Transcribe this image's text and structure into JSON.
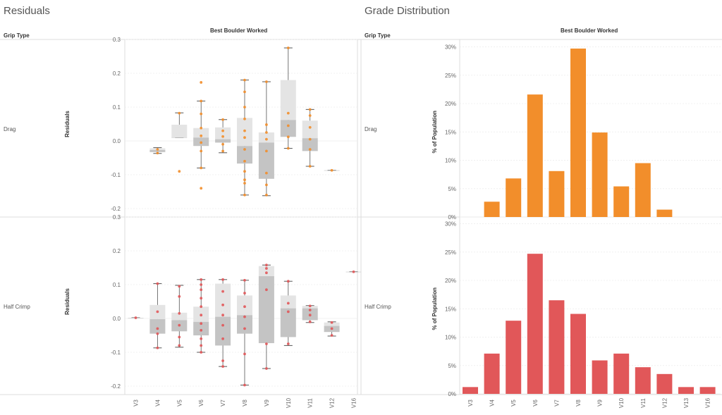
{
  "sheets": {
    "left_title": "Residuals",
    "right_title": "Grade Distribution",
    "row_header": "Grip Type",
    "col_header": "Best Boulder Worked"
  },
  "colors": {
    "drag": "#f28e2b",
    "half_crimp": "#e15759",
    "box_upper": "#e4e4e4",
    "box_lower": "#c4c4c4",
    "whisker": "#555555"
  },
  "chart_data": [
    {
      "type": "box",
      "title": "Residuals",
      "panel": "Drag",
      "ylabel": "Residuals",
      "ylim": [
        -0.2,
        0.3
      ],
      "yticks": [
        "0.3",
        "0.2",
        "0.1",
        "0.0",
        "-0.1",
        "-0.2"
      ],
      "categories": [
        "V3",
        "V4",
        "V5",
        "V6",
        "V7",
        "V8",
        "V9",
        "V10",
        "V11",
        "V12",
        "V16"
      ],
      "boxes": [
        null,
        {
          "cat": "V4",
          "lo": -0.037,
          "q1": -0.033,
          "med": -0.027,
          "q3": -0.022,
          "hi": -0.02,
          "points": [
            -0.036,
            -0.025
          ]
        },
        {
          "cat": "V5",
          "lo": 0.01,
          "q1": 0.01,
          "med": 0.01,
          "q3": 0.048,
          "hi": 0.083,
          "points": [
            -0.09,
            0.082
          ]
        },
        {
          "cat": "V6",
          "lo": -0.08,
          "q1": -0.015,
          "med": 0.01,
          "q3": 0.038,
          "hi": 0.118,
          "points": [
            0.173,
            0.118,
            0.08,
            0.038,
            0.015,
            -0.005,
            -0.03,
            -0.08,
            -0.14
          ]
        },
        {
          "cat": "V7",
          "lo": -0.035,
          "q1": -0.005,
          "med": 0.005,
          "q3": 0.04,
          "hi": 0.063,
          "points": [
            0.063,
            0.03,
            0.013,
            -0.01,
            -0.03
          ]
        },
        {
          "cat": "V8",
          "lo": -0.16,
          "q1": -0.067,
          "med": -0.015,
          "q3": 0.068,
          "hi": 0.18,
          "points": [
            0.18,
            0.145,
            0.1,
            0.065,
            0.03,
            0.01,
            -0.025,
            -0.06,
            -0.09,
            -0.115,
            -0.125,
            -0.16
          ]
        },
        {
          "cat": "V9",
          "lo": -0.162,
          "q1": -0.112,
          "med": -0.005,
          "q3": 0.025,
          "hi": 0.175,
          "points": [
            0.175,
            0.048,
            0.025,
            0.005,
            -0.03,
            -0.095,
            -0.13,
            -0.16
          ]
        },
        {
          "cat": "V10",
          "lo": -0.022,
          "q1": 0.012,
          "med": 0.062,
          "q3": 0.18,
          "hi": 0.275,
          "points": [
            0.275,
            0.082,
            0.045,
            0.012,
            -0.022
          ]
        },
        {
          "cat": "V11",
          "lo": -0.075,
          "q1": -0.03,
          "med": 0.008,
          "q3": 0.06,
          "hi": 0.093,
          "points": [
            0.093,
            0.075,
            0.04,
            0.005,
            -0.025,
            -0.075
          ]
        },
        {
          "cat": "V12",
          "lo": -0.087,
          "q1": -0.087,
          "med": -0.087,
          "q3": -0.087,
          "hi": -0.087,
          "points": [
            -0.087
          ]
        },
        null
      ]
    },
    {
      "type": "box",
      "title": "Residuals",
      "panel": "Half Crimp",
      "ylabel": "Residuals",
      "ylim": [
        -0.2,
        0.3
      ],
      "yticks": [
        "0.3",
        "0.2",
        "0.1",
        "0.0",
        "-0.1",
        "-0.2"
      ],
      "categories": [
        "V3",
        "V4",
        "V5",
        "V6",
        "V7",
        "V8",
        "V9",
        "V10",
        "V11",
        "V12",
        "V16"
      ],
      "boxes": [
        {
          "cat": "V3",
          "lo": 0.002,
          "q1": 0.002,
          "med": 0.002,
          "q3": 0.002,
          "hi": 0.002,
          "points": [
            0.002
          ]
        },
        {
          "cat": "V4",
          "lo": -0.087,
          "q1": -0.045,
          "med": -0.002,
          "q3": 0.04,
          "hi": 0.103,
          "points": [
            0.103,
            0.02,
            -0.03,
            -0.045,
            -0.087
          ]
        },
        {
          "cat": "V5",
          "lo": -0.085,
          "q1": -0.038,
          "med": -0.005,
          "q3": 0.017,
          "hi": 0.098,
          "points": [
            0.095,
            0.065,
            0.015,
            -0.02,
            -0.055,
            -0.08
          ]
        },
        {
          "cat": "V6",
          "lo": -0.1,
          "q1": -0.05,
          "med": -0.01,
          "q3": 0.035,
          "hi": 0.115,
          "points": [
            0.115,
            0.1,
            0.085,
            0.06,
            0.035,
            0.01,
            -0.015,
            -0.035,
            -0.06,
            -0.08,
            -0.1
          ]
        },
        {
          "cat": "V7",
          "lo": -0.142,
          "q1": -0.08,
          "med": 0.005,
          "q3": 0.103,
          "hi": 0.115,
          "points": [
            0.115,
            0.08,
            0.04,
            0.01,
            -0.02,
            -0.06,
            -0.125,
            -0.142
          ]
        },
        {
          "cat": "V8",
          "lo": -0.197,
          "q1": -0.045,
          "med": 0.01,
          "q3": 0.068,
          "hi": 0.113,
          "points": [
            0.113,
            0.075,
            0.035,
            0.005,
            -0.03,
            -0.105,
            -0.197
          ]
        },
        {
          "cat": "V9",
          "lo": -0.148,
          "q1": -0.073,
          "med": 0.125,
          "q3": 0.155,
          "hi": 0.158,
          "points": [
            0.158,
            0.148,
            0.135,
            0.085,
            -0.075,
            -0.148
          ]
        },
        {
          "cat": "V10",
          "lo": -0.08,
          "q1": -0.055,
          "med": 0.03,
          "q3": 0.068,
          "hi": 0.11,
          "points": [
            0.11,
            0.045,
            0.02,
            -0.075
          ]
        },
        {
          "cat": "V11",
          "lo": -0.012,
          "q1": -0.005,
          "med": 0.03,
          "q3": 0.037,
          "hi": 0.038,
          "points": [
            0.037,
            0.025,
            0.01,
            -0.01
          ]
        },
        {
          "cat": "V12",
          "lo": -0.052,
          "q1": -0.04,
          "med": -0.022,
          "q3": -0.012,
          "hi": -0.01,
          "points": [
            -0.012,
            -0.03,
            -0.05
          ]
        },
        {
          "cat": "V16",
          "lo": 0.138,
          "q1": 0.138,
          "med": 0.138,
          "q3": 0.138,
          "hi": 0.138,
          "points": [
            0.138
          ]
        }
      ]
    },
    {
      "type": "bar",
      "title": "Grade Distribution",
      "panel": "Drag",
      "ylabel": "% of Population",
      "ylim": [
        0,
        30
      ],
      "yticks": [
        "30%",
        "25%",
        "20%",
        "15%",
        "10%",
        "5%",
        "0%"
      ],
      "categories": [
        "V3",
        "V4",
        "V5",
        "V6",
        "V7",
        "V8",
        "V9",
        "V10",
        "V11",
        "V12",
        "V13",
        "V16"
      ],
      "values": [
        0,
        2.7,
        6.8,
        21.6,
        8.1,
        29.7,
        14.9,
        5.4,
        9.5,
        1.3,
        0,
        0
      ]
    },
    {
      "type": "bar",
      "title": "Grade Distribution",
      "panel": "Half Crimp",
      "ylabel": "% of Population",
      "ylim": [
        0,
        30
      ],
      "yticks": [
        "30%",
        "25%",
        "20%",
        "15%",
        "10%",
        "5%",
        "0%"
      ],
      "categories": [
        "V3",
        "V4",
        "V5",
        "V6",
        "V7",
        "V8",
        "V9",
        "V10",
        "V11",
        "V12",
        "V13",
        "V16"
      ],
      "values": [
        1.2,
        7.1,
        12.9,
        24.7,
        16.5,
        14.1,
        5.9,
        7.1,
        4.7,
        3.5,
        1.2,
        1.2
      ]
    }
  ]
}
